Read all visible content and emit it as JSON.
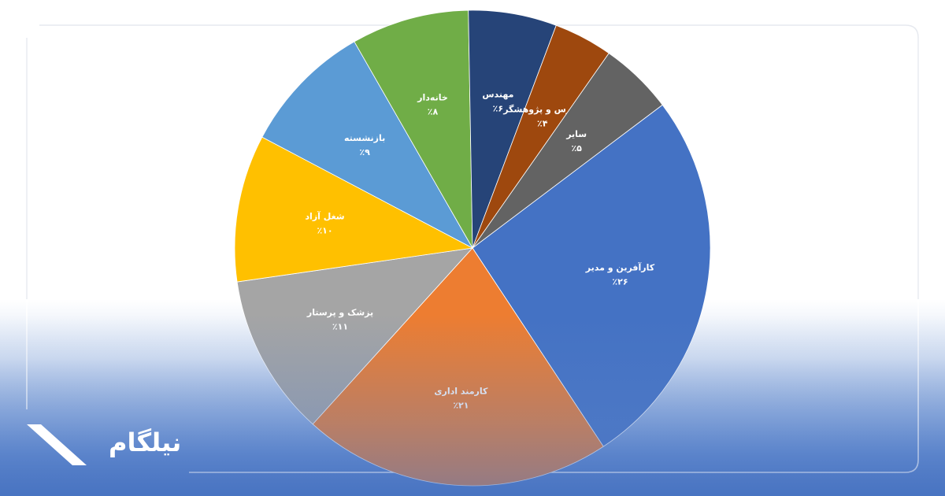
{
  "brand": {
    "logo_text": "نیلگام",
    "logo_color": "#ffffff"
  },
  "chart_data": {
    "type": "pie",
    "start_angle_deg": -37,
    "direction": "clockwise",
    "slices": [
      {
        "label": "کارآفرین و مدیر",
        "value": 26,
        "value_label": "٪۲۶",
        "color": "#4472c4",
        "text_color": "#ffffff"
      },
      {
        "label": "کارمند اداری",
        "value": 21,
        "value_label": "٪۲۱",
        "color": "#ed7d31",
        "text_color": "#ffffff"
      },
      {
        "label": "پزشک و پرستار",
        "value": 11,
        "value_label": "٪۱۱",
        "color": "#a5a5a5",
        "text_color": "#ffffff"
      },
      {
        "label": "شغل آزاد",
        "value": 10,
        "value_label": "٪۱۰",
        "color": "#ffc000",
        "text_color": "#ffffff"
      },
      {
        "label": "بازنشسته",
        "value": 9,
        "value_label": "٪۹",
        "color": "#5b9bd5",
        "text_color": "#ffffff"
      },
      {
        "label": "خانه‌دار",
        "value": 8,
        "value_label": "٪۸",
        "color": "#70ad47",
        "text_color": "#ffffff"
      },
      {
        "label": "مهندس",
        "value": 6,
        "value_label": "٪۶",
        "color": "#264478",
        "text_color": "#ffffff"
      },
      {
        "label": "مدرس و پژوهشگر",
        "value": 4,
        "value_label": "٪۴",
        "color": "#9e480e",
        "text_color": "#ffffff"
      },
      {
        "label": "سایر",
        "value": 5,
        "value_label": "٪۵",
        "color": "#636363",
        "text_color": "#ffffff"
      }
    ]
  }
}
